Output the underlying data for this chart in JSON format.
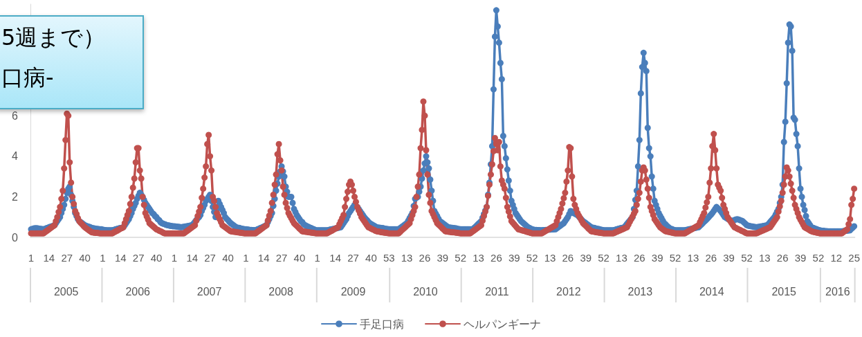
{
  "chart_data": {
    "type": "line",
    "marker": "circle",
    "line_style": "solid",
    "grid": false,
    "legend": "bottom",
    "title": "5週まで）",
    "subtitle": "口病-",
    "annotations": [
      "2005",
      "2006",
      "2007",
      "2008",
      "2009",
      "2010",
      "2011",
      "2012",
      "2013",
      "2014",
      "2015",
      "2016"
    ],
    "ylim": [
      0,
      11.5
    ],
    "yticks": [
      0,
      2,
      4,
      6
    ],
    "categories": [
      "1",
      null,
      null,
      null,
      null,
      null,
      null,
      null,
      null,
      null,
      null,
      null,
      null,
      "14",
      null,
      null,
      null,
      null,
      null,
      null,
      null,
      null,
      null,
      null,
      null,
      null,
      "27",
      null,
      null,
      null,
      null,
      null,
      null,
      null,
      null,
      null,
      null,
      null,
      null,
      "40",
      null,
      null,
      null,
      null,
      null,
      null,
      null,
      null,
      null,
      null,
      null,
      null,
      "1",
      null,
      null,
      null,
      null,
      null,
      null,
      null,
      null,
      null,
      null,
      null,
      null,
      "14",
      null,
      null,
      null,
      null,
      null,
      null,
      null,
      null,
      null,
      null,
      null,
      null,
      "27",
      null,
      null,
      null,
      null,
      null,
      null,
      null,
      null,
      null,
      null,
      null,
      null,
      "40",
      null,
      null,
      null,
      null,
      null,
      null,
      null,
      null,
      null,
      null,
      null,
      null,
      "1",
      null,
      null,
      null,
      null,
      null,
      null,
      null,
      null,
      null,
      null,
      null,
      null,
      "14",
      null,
      null,
      null,
      null,
      null,
      null,
      null,
      null,
      null,
      null,
      null,
      null,
      "27",
      null,
      null,
      null,
      null,
      null,
      null,
      null,
      null,
      null,
      null,
      null,
      null,
      "40",
      null,
      null,
      null,
      null,
      null,
      null,
      null,
      null,
      null,
      null,
      null,
      null,
      "1",
      null,
      null,
      null,
      null,
      null,
      null,
      null,
      null,
      null,
      null,
      null,
      null,
      "14",
      null,
      null,
      null,
      null,
      null,
      null,
      null,
      null,
      null,
      null,
      null,
      null,
      "27",
      null,
      null,
      null,
      null,
      null,
      null,
      null,
      null,
      null,
      null,
      null,
      null,
      "40",
      null,
      null,
      null,
      null,
      null,
      null,
      null,
      null,
      null,
      null,
      null,
      null,
      "1",
      null,
      null,
      null,
      null,
      null,
      null,
      null,
      null,
      null,
      null,
      null,
      null,
      "14",
      null,
      null,
      null,
      null,
      null,
      null,
      null,
      null,
      null,
      null,
      null,
      null,
      "27",
      null,
      null,
      null,
      null,
      null,
      null,
      null,
      null,
      null,
      null,
      null,
      null,
      "40",
      null,
      null,
      null,
      null,
      null,
      null,
      null,
      null,
      null,
      null,
      null,
      null,
      "53",
      null,
      null,
      null,
      null,
      null,
      null,
      null,
      null,
      null,
      null,
      null,
      null,
      "13",
      null,
      null,
      null,
      null,
      null,
      null,
      null,
      null,
      null,
      null,
      null,
      null,
      "26",
      null,
      null,
      null,
      null,
      null,
      null,
      null,
      null,
      null,
      null,
      null,
      null,
      "39",
      null,
      null,
      null,
      null,
      null,
      null,
      null,
      null,
      null,
      null,
      null,
      null,
      "52",
      null,
      null,
      null,
      null,
      null,
      null,
      null,
      null,
      null,
      null,
      null,
      null,
      "13",
      null,
      null,
      null,
      null,
      null,
      null,
      null,
      null,
      null,
      null,
      null,
      null,
      "26",
      null,
      null,
      null,
      null,
      null,
      null,
      null,
      null,
      null,
      null,
      null,
      null,
      "39",
      null,
      null,
      null,
      null,
      null,
      null,
      null,
      null,
      null,
      null,
      null,
      null,
      "52",
      null,
      null,
      null,
      null,
      null,
      null,
      null,
      null,
      null,
      null,
      null,
      null,
      "13",
      null,
      null,
      null,
      null,
      null,
      null,
      null,
      null,
      null,
      null,
      null,
      null,
      "26",
      null,
      null,
      null,
      null,
      null,
      null,
      null,
      null,
      null,
      null,
      null,
      null,
      "39",
      null,
      null,
      null,
      null,
      null,
      null,
      null,
      null,
      null,
      null,
      null,
      null,
      "52",
      null,
      null,
      null,
      null,
      null,
      null,
      null,
      null,
      null,
      null,
      null,
      null,
      "13",
      null,
      null,
      null,
      null,
      null,
      null,
      null,
      null,
      null,
      null,
      null,
      null,
      "26",
      null,
      null,
      null,
      null,
      null,
      null,
      null,
      null,
      null,
      null,
      null,
      null,
      "39",
      null,
      null,
      null,
      null,
      null,
      null,
      null,
      null,
      null,
      null,
      null,
      null,
      "52",
      null,
      null,
      null,
      null,
      null,
      null,
      null,
      null,
      null,
      null,
      null,
      null,
      "13",
      null,
      null,
      null,
      null,
      null,
      null,
      null,
      null,
      null,
      null,
      null,
      null,
      "26",
      null,
      null,
      null,
      null,
      null,
      null,
      null,
      null,
      null,
      null,
      null,
      null,
      "39",
      null,
      null,
      null,
      null,
      null,
      null,
      null,
      null,
      null,
      null,
      null,
      null,
      "52",
      null,
      null,
      null,
      null,
      null,
      null,
      null,
      null,
      null,
      null,
      null,
      null,
      "13",
      null,
      null,
      null,
      null,
      null,
      null,
      null,
      null,
      null,
      null,
      null,
      null,
      "26",
      null,
      null,
      null,
      null,
      null,
      null,
      null,
      null,
      null,
      null,
      null,
      null,
      "39",
      null,
      null,
      null,
      null,
      null,
      null,
      null,
      null,
      null,
      null,
      null,
      null,
      "52",
      null,
      null,
      null,
      null,
      null,
      null,
      null,
      null,
      null,
      null,
      null,
      null,
      "12",
      null,
      null,
      null,
      null,
      null,
      null,
      null,
      null,
      null,
      null,
      null,
      null,
      "25"
    ],
    "series": [
      {
        "name": "手足口病",
        "color": "#4a7ebb",
        "values": [
          0.4,
          0.42,
          0.44,
          0.45,
          0.45,
          0.44,
          0.43,
          0.42,
          0.41,
          0.4,
          0.42,
          0.45,
          0.47,
          0.5,
          0.52,
          0.55,
          0.57,
          0.6,
          0.7,
          0.8,
          0.9,
          1.0,
          1.2,
          1.4,
          1.6,
          1.9,
          2.2,
          2.4,
          2.5,
          2.1,
          1.8,
          1.5,
          1.2,
          1.05,
          0.9,
          0.8,
          0.75,
          0.7,
          0.65,
          0.6,
          0.57,
          0.55,
          0.52,
          0.5,
          0.47,
          0.45,
          0.44,
          0.43,
          0.42,
          0.41,
          0.4,
          0.4,
          0.38,
          0.37,
          0.36,
          0.35,
          0.35,
          0.35,
          0.35,
          0.35,
          0.37,
          0.39,
          0.41,
          0.43,
          0.45,
          0.46,
          0.48,
          0.5,
          0.6,
          0.7,
          0.8,
          0.9,
          1.05,
          1.2,
          1.4,
          1.55,
          1.7,
          1.9,
          2.05,
          2.2,
          2.1,
          2.0,
          1.85,
          1.7,
          1.6,
          1.5,
          1.4,
          1.3,
          1.2,
          1.15,
          1.05,
          1.0,
          0.9,
          0.85,
          0.75,
          0.7,
          0.67,
          0.65,
          0.62,
          0.6,
          0.59,
          0.57,
          0.56,
          0.55,
          0.55,
          0.54,
          0.53,
          0.52,
          0.51,
          0.5,
          0.51,
          0.52,
          0.54,
          0.55,
          0.56,
          0.57,
          0.59,
          0.6,
          0.68,
          0.76,
          0.85,
          0.93,
          1.0,
          1.1,
          1.3,
          1.45,
          1.6,
          1.8,
          1.9,
          2.0,
          2.1,
          1.8,
          1.5,
          1.25,
          1.0,
          1.4,
          1.8,
          1.65,
          1.5,
          1.35,
          1.2,
          1.0,
          0.92,
          0.85,
          0.77,
          0.7,
          0.65,
          0.6,
          0.55,
          0.5,
          0.48,
          0.47,
          0.45,
          0.43,
          0.42,
          0.4,
          0.4,
          0.39,
          0.38,
          0.37,
          0.37,
          0.36,
          0.36,
          0.35,
          0.38,
          0.41,
          0.44,
          0.47,
          0.5,
          0.53,
          0.57,
          0.6,
          0.75,
          0.9,
          1.05,
          1.2,
          1.55,
          1.9,
          2.3,
          2.65,
          3.0,
          3.25,
          3.5,
          3.25,
          3.0,
          2.5,
          2.25,
          2.0,
          2.0,
          2.0,
          1.7,
          1.4,
          1.25,
          1.1,
          1.0,
          0.9,
          0.8,
          0.75,
          0.65,
          0.6,
          0.57,
          0.53,
          0.5,
          0.47,
          0.44,
          0.41,
          0.38,
          0.35,
          0.35,
          0.35,
          0.35,
          0.35,
          0.35,
          0.35,
          0.35,
          0.35,
          0.36,
          0.38,
          0.39,
          0.41,
          0.42,
          0.44,
          0.45,
          0.47,
          0.48,
          0.5,
          0.6,
          0.7,
          0.8,
          0.9,
          1.05,
          1.2,
          1.3,
          1.4,
          1.5,
          1.6,
          1.55,
          1.5,
          1.4,
          1.3,
          1.2,
          1.1,
          1.0,
          0.92,
          0.85,
          0.77,
          0.7,
          0.66,
          0.62,
          0.58,
          0.54,
          0.5,
          0.49,
          0.48,
          0.47,
          0.46,
          0.45,
          0.43,
          0.42,
          0.41,
          0.4,
          0.4,
          0.4,
          0.4,
          0.4,
          0.4,
          0.4,
          0.4,
          0.45,
          0.5,
          0.55,
          0.6,
          0.65,
          0.7,
          0.82,
          0.95,
          1.07,
          1.2,
          1.55,
          1.9,
          1.95,
          2.0,
          2.25,
          2.5,
          2.9,
          3.3,
          3.65,
          4.0,
          3.7,
          3.4,
          2.85,
          2.3,
          1.8,
          1.3,
          1.17,
          1.05,
          0.92,
          0.8,
          0.75,
          0.7,
          0.65,
          0.6,
          0.55,
          0.5,
          0.49,
          0.48,
          0.47,
          0.46,
          0.45,
          0.44,
          0.42,
          0.41,
          0.4,
          0.4,
          0.4,
          0.4,
          0.4,
          0.4,
          0.4,
          0.4,
          0.4,
          0.4,
          0.47,
          0.53,
          0.6,
          0.67,
          0.73,
          0.8,
          0.97,
          1.15,
          1.32,
          1.5,
          2.1,
          2.7,
          3.6,
          4.5,
          7.3,
          9.9,
          11.2,
          10.4,
          9.6,
          8.6,
          7.8,
          5.0,
          4.5,
          3.9,
          3.35,
          2.8,
          2.3,
          1.8,
          1.6,
          1.4,
          1.2,
          1.1,
          1.0,
          0.9,
          0.8,
          0.74,
          0.68,
          0.62,
          0.56,
          0.5,
          0.47,
          0.43,
          0.4,
          0.38,
          0.37,
          0.37,
          0.36,
          0.36,
          0.35,
          0.35,
          0.36,
          0.36,
          0.37,
          0.37,
          0.38,
          0.38,
          0.39,
          0.39,
          0.4,
          0.4,
          0.45,
          0.5,
          0.55,
          0.6,
          0.65,
          0.7,
          0.8,
          0.9,
          1.0,
          1.15,
          1.3,
          1.25,
          1.2,
          1.17,
          1.13,
          1.1,
          1.02,
          0.95,
          0.87,
          0.8,
          0.75,
          0.7,
          0.65,
          0.6,
          0.55,
          0.5,
          0.48,
          0.47,
          0.45,
          0.43,
          0.42,
          0.4,
          0.38,
          0.37,
          0.35,
          0.35,
          0.35,
          0.35,
          0.35,
          0.35,
          0.35,
          0.35,
          0.37,
          0.39,
          0.41,
          0.43,
          0.45,
          0.46,
          0.48,
          0.5,
          0.58,
          0.67,
          0.75,
          0.83,
          0.92,
          1.0,
          1.4,
          1.85,
          2.3,
          3.5,
          4.8,
          7.1,
          8.4,
          9.1,
          8.6,
          8.2,
          5.4,
          4.4,
          4.0,
          3.0,
          2.4,
          1.8,
          1.6,
          1.4,
          1.2,
          1.07,
          0.95,
          0.82,
          0.7,
          0.64,
          0.57,
          0.51,
          0.45,
          0.42,
          0.4,
          0.37,
          0.35,
          0.35,
          0.35,
          0.35,
          0.35,
          0.35,
          0.35,
          0.35,
          0.37,
          0.38,
          0.4,
          0.41,
          0.43,
          0.44,
          0.46,
          0.47,
          0.49,
          0.5,
          0.57,
          0.63,
          0.7,
          0.77,
          0.83,
          0.9,
          0.97,
          1.05,
          1.12,
          1.2,
          1.3,
          1.4,
          1.5,
          1.43,
          1.37,
          1.3,
          1.2,
          1.1,
          1.0,
          0.96,
          0.92,
          0.88,
          0.84,
          0.8,
          0.83,
          0.85,
          0.88,
          0.9,
          0.88,
          0.85,
          0.83,
          0.8,
          0.73,
          0.67,
          0.6,
          0.58,
          0.56,
          0.55,
          0.54,
          0.52,
          0.51,
          0.5,
          0.51,
          0.52,
          0.54,
          0.55,
          0.56,
          0.57,
          0.59,
          0.6,
          0.68,
          0.76,
          0.84,
          0.92,
          1.0,
          1.13,
          1.27,
          1.4,
          1.7,
          2.0,
          2.6,
          4.7,
          5.7,
          7.6,
          9.6,
          10.5,
          10.4,
          9.2,
          5.9,
          5.8,
          5.1,
          4.5,
          3.4,
          2.4,
          2.0,
          1.6,
          1.35,
          1.05,
          0.8,
          0.7,
          0.6,
          0.5,
          0.47,
          0.45,
          0.42,
          0.4,
          0.37,
          0.35,
          0.33,
          0.32,
          0.32,
          0.31,
          0.31,
          0.3,
          0.3,
          0.3,
          0.3,
          0.3,
          0.3,
          0.3,
          0.3,
          0.3,
          0.3,
          0.3,
          0.31,
          0.32,
          0.32,
          0.33,
          0.34,
          0.35,
          0.42,
          0.48,
          0.55
        ]
      },
      {
        "name": "ヘルパンギーナ",
        "color": "#c0504d",
        "values": [
          0.2,
          0.2,
          0.2,
          0.2,
          0.2,
          0.2,
          0.2,
          0.2,
          0.2,
          0.2,
          0.25,
          0.3,
          0.35,
          0.4,
          0.45,
          0.5,
          0.55,
          0.6,
          0.8,
          1.0,
          1.25,
          1.5,
          1.9,
          2.3,
          3.4,
          4.8,
          6.1,
          6.0,
          3.7,
          2.7,
          2.0,
          1.65,
          1.3,
          1.15,
          0.95,
          0.8,
          0.72,
          0.65,
          0.57,
          0.5,
          0.45,
          0.4,
          0.35,
          0.3,
          0.25,
          0.24,
          0.23,
          0.22,
          0.22,
          0.21,
          0.2,
          0.2,
          0.2,
          0.2,
          0.2,
          0.2,
          0.2,
          0.2,
          0.2,
          0.2,
          0.24,
          0.28,
          0.31,
          0.35,
          0.39,
          0.43,
          0.46,
          0.5,
          0.7,
          0.9,
          1.1,
          1.3,
          1.65,
          2.0,
          2.45,
          2.9,
          3.7,
          4.4,
          4.4,
          3.3,
          2.9,
          2.0,
          1.6,
          1.2,
          1.03,
          0.87,
          0.7,
          0.64,
          0.58,
          0.52,
          0.46,
          0.4,
          0.37,
          0.33,
          0.3,
          0.27,
          0.23,
          0.2,
          0.2,
          0.2,
          0.2,
          0.2,
          0.2,
          0.2,
          0.2,
          0.2,
          0.2,
          0.2,
          0.2,
          0.2,
          0.2,
          0.2,
          0.25,
          0.3,
          0.35,
          0.4,
          0.45,
          0.5,
          0.55,
          0.6,
          0.82,
          1.05,
          1.27,
          1.5,
          1.95,
          2.4,
          2.95,
          3.5,
          4.6,
          5.05,
          4.0,
          3.3,
          2.0,
          1.8,
          1.5,
          1.2,
          1.05,
          0.9,
          0.75,
          0.6,
          0.55,
          0.5,
          0.45,
          0.4,
          0.35,
          0.3,
          0.29,
          0.28,
          0.27,
          0.26,
          0.25,
          0.24,
          0.23,
          0.22,
          0.21,
          0.2,
          0.2,
          0.2,
          0.2,
          0.2,
          0.2,
          0.2,
          0.2,
          0.2,
          0.25,
          0.3,
          0.35,
          0.4,
          0.45,
          0.5,
          0.55,
          0.6,
          0.83,
          1.07,
          1.3,
          1.7,
          2.1,
          2.6,
          3.1,
          4.1,
          4.6,
          3.8,
          3.3,
          2.5,
          2.1,
          1.7,
          1.45,
          1.2,
          1.07,
          0.95,
          0.82,
          0.7,
          0.63,
          0.57,
          0.5,
          0.43,
          0.37,
          0.3,
          0.29,
          0.28,
          0.27,
          0.26,
          0.25,
          0.24,
          0.23,
          0.22,
          0.21,
          0.2,
          0.2,
          0.2,
          0.2,
          0.2,
          0.2,
          0.2,
          0.2,
          0.2,
          0.24,
          0.28,
          0.31,
          0.35,
          0.39,
          0.43,
          0.46,
          0.5,
          0.65,
          0.8,
          0.95,
          1.1,
          1.5,
          1.9,
          2.25,
          2.6,
          2.75,
          2.6,
          2.3,
          2.0,
          1.75,
          1.5,
          1.33,
          1.17,
          1.0,
          0.9,
          0.8,
          0.7,
          0.6,
          0.5,
          0.47,
          0.43,
          0.4,
          0.37,
          0.33,
          0.3,
          0.29,
          0.28,
          0.26,
          0.25,
          0.24,
          0.23,
          0.22,
          0.21,
          0.2,
          0.2,
          0.2,
          0.2,
          0.2,
          0.2,
          0.2,
          0.2,
          0.26,
          0.33,
          0.39,
          0.45,
          0.51,
          0.58,
          0.64,
          0.7,
          0.9,
          1.1,
          1.3,
          1.5,
          2.0,
          2.5,
          3.1,
          4.4,
          5.3,
          6.7,
          6.0,
          4.3,
          3.1,
          2.1,
          1.7,
          1.3,
          1.15,
          1.0,
          0.85,
          0.7,
          0.63,
          0.57,
          0.5,
          0.43,
          0.37,
          0.3,
          0.29,
          0.28,
          0.27,
          0.26,
          0.25,
          0.25,
          0.24,
          0.23,
          0.22,
          0.21,
          0.2,
          0.2,
          0.2,
          0.2,
          0.2,
          0.2,
          0.2,
          0.2,
          0.25,
          0.3,
          0.35,
          0.4,
          0.45,
          0.5,
          0.55,
          0.6,
          0.82,
          1.05,
          1.27,
          1.5,
          2.05,
          2.6,
          3.1,
          3.6,
          4.25,
          4.9,
          4.6,
          4.3,
          4.7,
          3.5,
          2.8,
          2.6,
          2.4,
          1.95,
          1.5,
          1.27,
          1.03,
          0.8,
          0.72,
          0.64,
          0.56,
          0.48,
          0.4,
          0.38,
          0.36,
          0.34,
          0.32,
          0.3,
          0.28,
          0.26,
          0.24,
          0.22,
          0.2,
          0.2,
          0.2,
          0.2,
          0.2,
          0.2,
          0.2,
          0.2,
          0.24,
          0.28,
          0.32,
          0.36,
          0.4,
          0.44,
          0.48,
          0.52,
          0.56,
          0.6,
          0.8,
          1.0,
          1.2,
          1.4,
          1.67,
          1.93,
          2.2,
          2.75,
          3.3,
          4.45,
          4.4,
          3.0,
          1.9,
          1.6,
          1.4,
          1.2,
          1.07,
          0.95,
          0.82,
          0.7,
          0.63,
          0.57,
          0.5,
          0.43,
          0.37,
          0.3,
          0.29,
          0.28,
          0.26,
          0.25,
          0.24,
          0.23,
          0.22,
          0.21,
          0.2,
          0.2,
          0.2,
          0.2,
          0.2,
          0.2,
          0.2,
          0.2,
          0.23,
          0.26,
          0.29,
          0.32,
          0.35,
          0.38,
          0.41,
          0.44,
          0.47,
          0.5,
          0.63,
          0.77,
          0.9,
          1.03,
          1.17,
          1.3,
          1.6,
          1.9,
          2.2,
          2.75,
          3.3,
          3.45,
          3.3,
          2.85,
          2.4,
          1.95,
          1.5,
          1.3,
          1.1,
          0.9,
          0.8,
          0.7,
          0.6,
          0.5,
          0.45,
          0.4,
          0.35,
          0.3,
          0.29,
          0.27,
          0.26,
          0.24,
          0.23,
          0.21,
          0.2,
          0.2,
          0.2,
          0.2,
          0.2,
          0.2,
          0.2,
          0.2,
          0.24,
          0.28,
          0.32,
          0.36,
          0.4,
          0.44,
          0.48,
          0.52,
          0.56,
          0.6,
          0.75,
          0.9,
          1.05,
          1.2,
          1.47,
          1.73,
          2.0,
          2.7,
          3.4,
          4.5,
          5.1,
          4.3,
          3.4,
          2.6,
          2.45,
          2.3,
          1.95,
          1.6,
          1.4,
          1.2,
          1.0,
          0.9,
          0.8,
          0.7,
          0.6,
          0.5,
          0.47,
          0.43,
          0.4,
          0.37,
          0.33,
          0.3,
          0.27,
          0.23,
          0.2,
          0.2,
          0.2,
          0.2,
          0.2,
          0.2,
          0.2,
          0.2,
          0.23,
          0.26,
          0.29,
          0.32,
          0.35,
          0.38,
          0.41,
          0.44,
          0.47,
          0.5,
          0.6,
          0.7,
          0.8,
          0.9,
          1.0,
          1.27,
          1.53,
          1.8,
          2.2,
          2.6,
          3.0,
          3.45,
          3.3,
          3.0,
          2.65,
          2.3,
          1.95,
          1.6,
          1.4,
          1.2,
          1.0,
          0.87,
          0.75,
          0.62,
          0.5,
          0.46,
          0.42,
          0.38,
          0.34,
          0.3,
          0.28,
          0.26,
          0.25,
          0.23,
          0.22,
          0.2,
          0.2,
          0.2,
          0.2,
          0.2,
          0.2,
          0.2,
          0.2,
          0.2,
          0.2,
          0.2,
          0.2,
          0.2,
          0.2,
          0.2,
          0.2,
          0.2,
          0.25,
          0.3,
          0.35,
          0.4,
          0.65,
          0.9,
          1.6,
          1.9,
          2.4
        ]
      }
    ]
  }
}
